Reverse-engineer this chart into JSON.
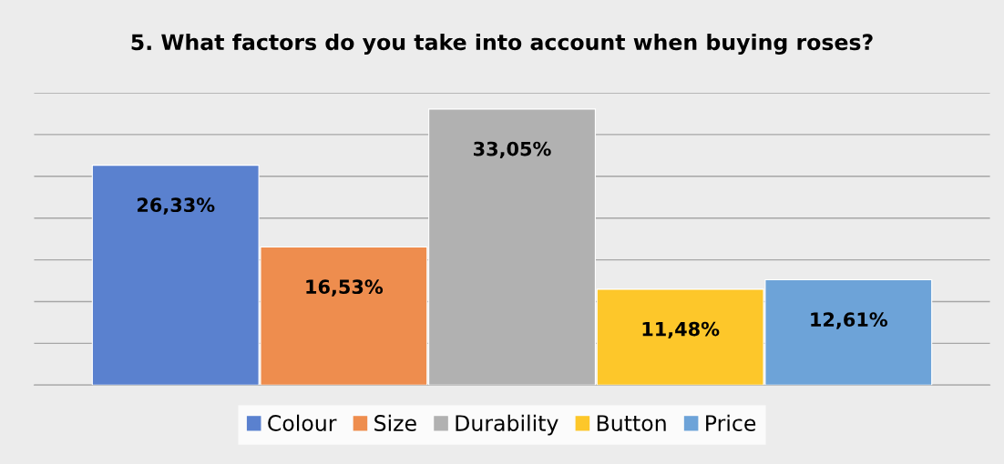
{
  "chart_data": {
    "type": "bar",
    "title": "5. What factors do you take into account when buying roses?",
    "categories": [
      null
    ],
    "series": [
      {
        "name": "Colour",
        "color": "#5a81cf",
        "values": [
          26.33
        ],
        "value_labels": [
          "26,33%"
        ]
      },
      {
        "name": "Size",
        "color": "#ee8d4e",
        "values": [
          16.53
        ],
        "value_labels": [
          "16,53%"
        ]
      },
      {
        "name": "Durability",
        "color": "#b1b1b1",
        "values": [
          33.05
        ],
        "value_labels": [
          "33,05%"
        ]
      },
      {
        "name": "Button",
        "color": "#fdc72a",
        "values": [
          11.48
        ],
        "value_labels": [
          "11,48%"
        ]
      },
      {
        "name": "Price",
        "color": "#6da3d8",
        "values": [
          12.61
        ],
        "value_labels": [
          "12,61%"
        ]
      }
    ],
    "ylim": [
      0,
      35
    ],
    "yticks": [
      {
        "value": 0,
        "label": null
      },
      {
        "value": 5,
        "label": null
      },
      {
        "value": 10,
        "label": null
      },
      {
        "value": 15,
        "label": null
      },
      {
        "value": 20,
        "label": null
      },
      {
        "value": 25,
        "label": null
      },
      {
        "value": 30,
        "label": null
      },
      {
        "value": 35,
        "label": null
      }
    ],
    "grid": "y",
    "legend": "bottom"
  }
}
